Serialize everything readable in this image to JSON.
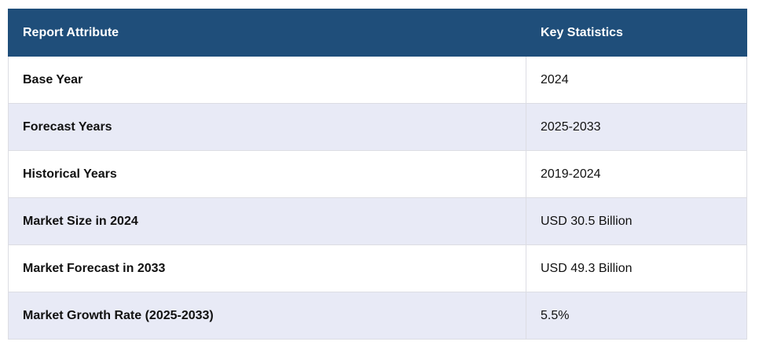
{
  "table": {
    "header": [
      "Report Attribute",
      "Key Statistics"
    ],
    "rows": [
      [
        "Base Year",
        "2024"
      ],
      [
        "Forecast Years",
        "2025-2033"
      ],
      [
        "Historical Years",
        "2019-2024"
      ],
      [
        "Market Size in 2024",
        "USD 30.5 Billion"
      ],
      [
        "Market Forecast in 2033",
        "USD 49.3 Billion"
      ],
      [
        "Market Growth Rate (2025-2033)",
        "5.5%"
      ]
    ]
  }
}
